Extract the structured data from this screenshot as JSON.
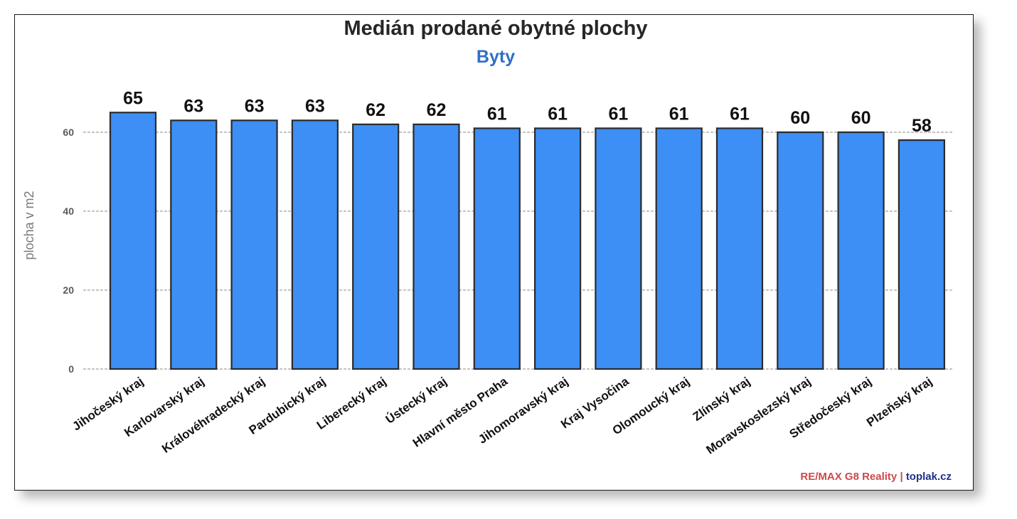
{
  "chart_data": {
    "type": "bar",
    "title": "Medián prodané obytné plochy",
    "subtitle": "Byty",
    "ylabel": "plocha v m2",
    "xlabel": "",
    "ylim": [
      0,
      65
    ],
    "yticks": [
      0,
      20,
      40,
      60
    ],
    "grid": "horizontal dotted",
    "bar_color": "#3d8ef5",
    "categories": [
      "Jihočeský kraj",
      "Karlovarský kraj",
      "Královéhradecký kraj",
      "Pardubický kraj",
      "Liberecký kraj",
      "Ústecký kraj",
      "Hlavní město Praha",
      "Jihomoravský kraj",
      "Kraj Vysočina",
      "Olomoucký kraj",
      "Zlínský kraj",
      "Moravskoslezský kraj",
      "Středočeský kraj",
      "Plzeňský kraj"
    ],
    "values": [
      65,
      63,
      63,
      63,
      62,
      62,
      61,
      61,
      61,
      61,
      61,
      60,
      60,
      58
    ]
  },
  "credit": {
    "remax": "RE/MAX G8 Reality",
    "separator": "|",
    "site": "toplak.cz"
  }
}
